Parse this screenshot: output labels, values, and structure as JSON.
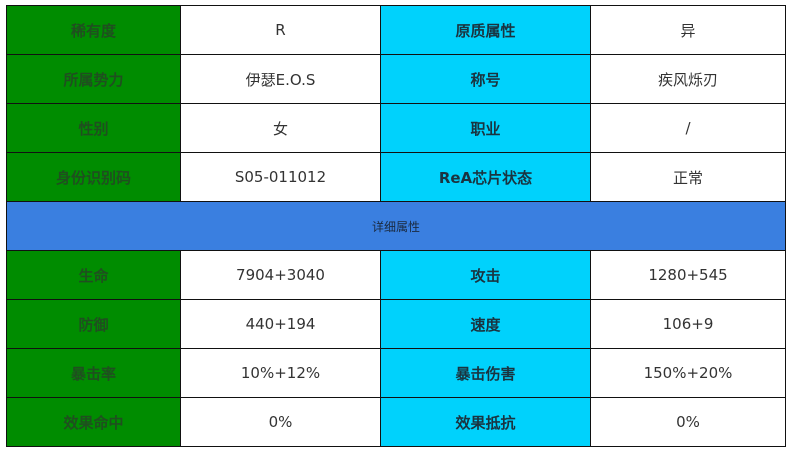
{
  "basic": [
    {
      "l1": "稀有度",
      "v1": "R",
      "l2": "原质属性",
      "v2": "异"
    },
    {
      "l1": "所属势力",
      "v1": "伊瑟E.O.S",
      "l2": "称号",
      "v2": "疾风烁刃"
    },
    {
      "l1": "性别",
      "v1": "女",
      "l2": "职业",
      "v2": "/"
    },
    {
      "l1": "身份识别码",
      "v1": "S05-011012",
      "l2": "ReA芯片状态",
      "v2": "正常"
    }
  ],
  "section_title": "详细属性",
  "stats": [
    {
      "l1": "生命",
      "v1": "7904+3040",
      "l2": "攻击",
      "v2": "1280+545"
    },
    {
      "l1": "防御",
      "v1": "440+194",
      "l2": "速度",
      "v2": "106+9"
    },
    {
      "l1": "暴击率",
      "v1": "10%+12%",
      "l2": "暴击伤害",
      "v2": "150%+20%"
    },
    {
      "l1": "效果命中",
      "v1": "0%",
      "l2": "效果抵抗",
      "v2": "0%"
    }
  ],
  "colors": {
    "label_green": "#008c00",
    "label_cyan": "#00d2fc",
    "section_blue": "#3a7fe0"
  }
}
